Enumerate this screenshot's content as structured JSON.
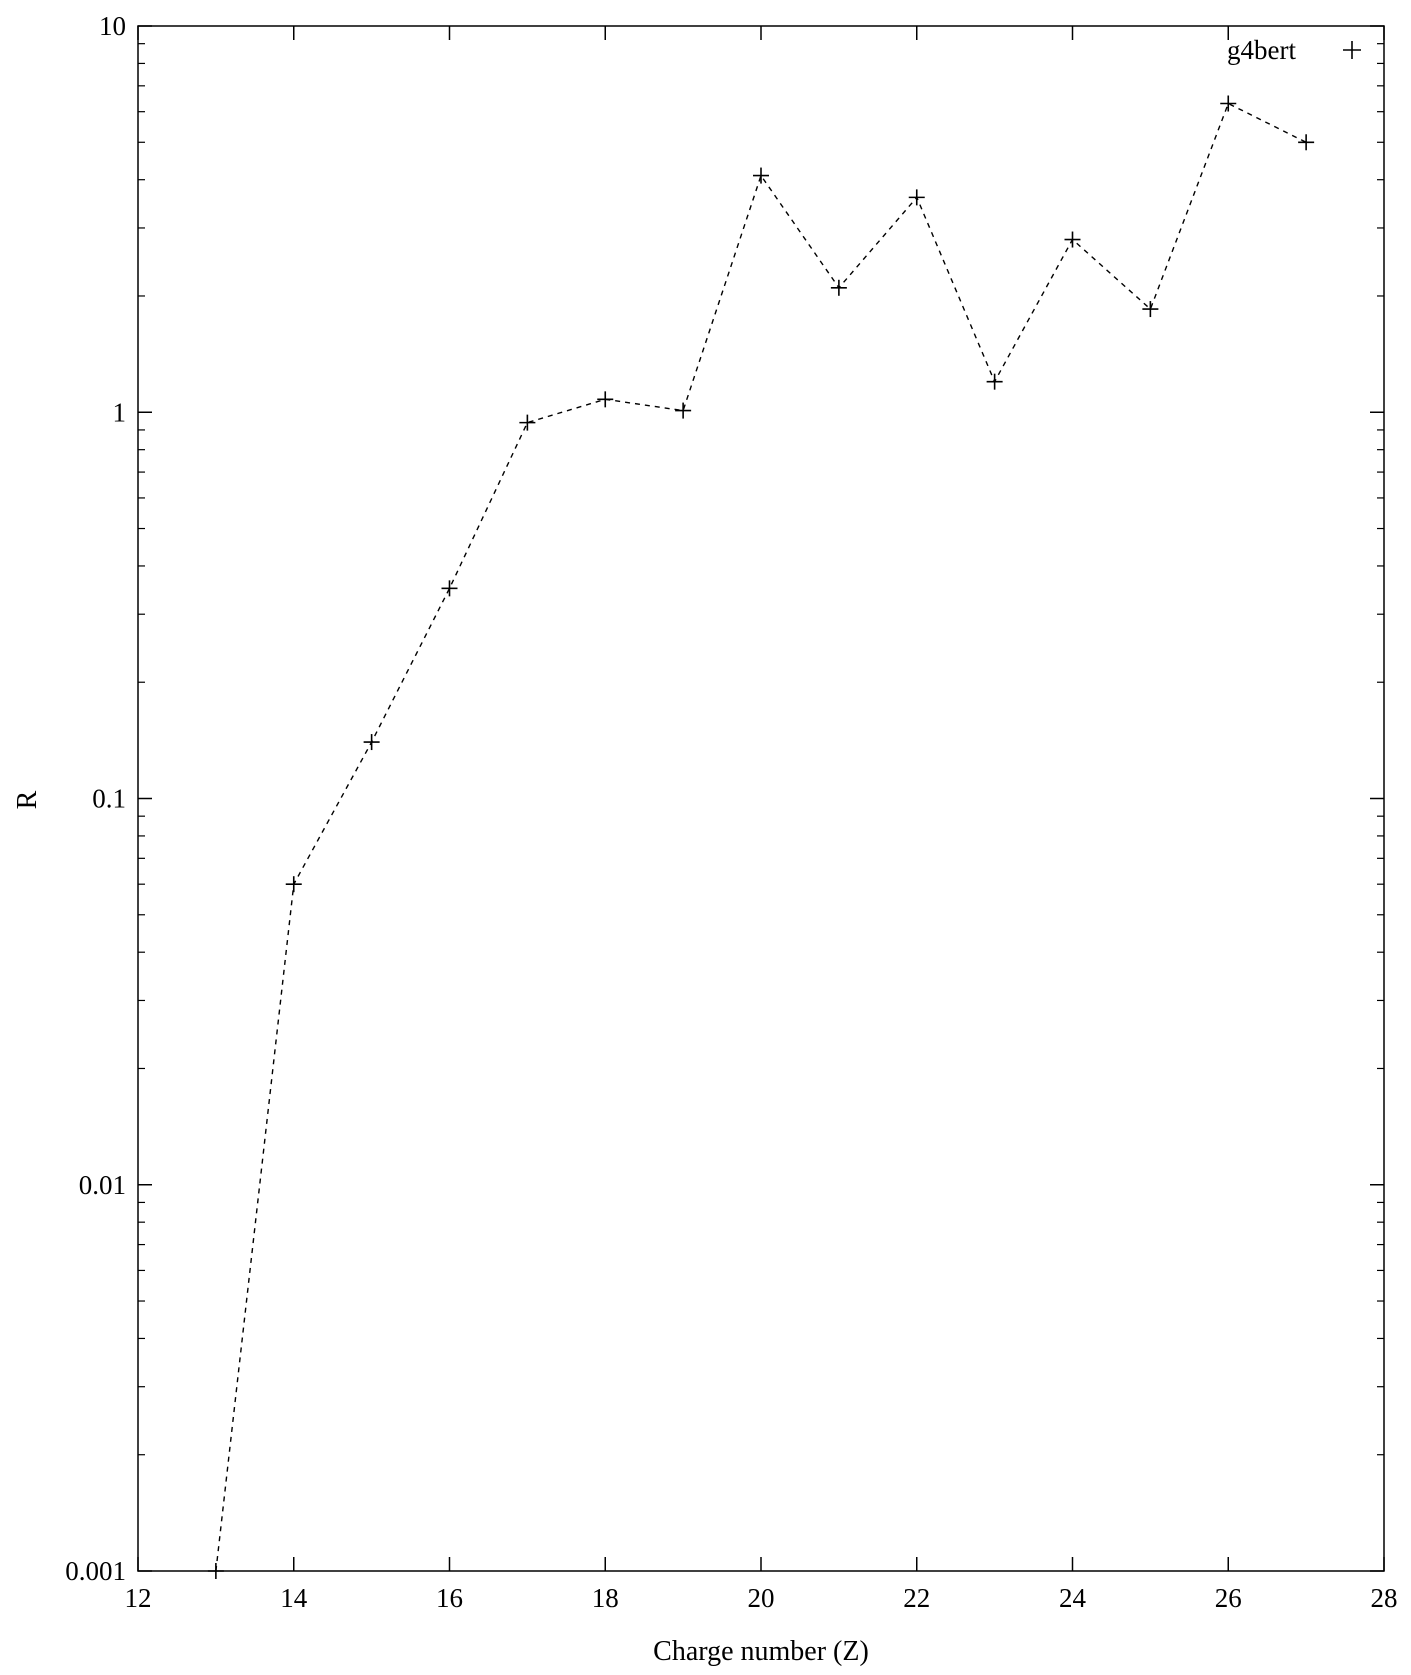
{
  "chart_data": {
    "type": "line",
    "xlabel": "Charge number (Z)",
    "ylabel": "R",
    "xlim": [
      12,
      28
    ],
    "ylim": [
      0.001,
      10
    ],
    "yscale": "log",
    "grid": false,
    "legend_position": "top-right",
    "x_ticks": [
      "12",
      "14",
      "16",
      "18",
      "20",
      "22",
      "24",
      "26",
      "28"
    ],
    "y_ticks": [
      "0.001",
      "0.01",
      "0.1",
      "1",
      "10"
    ],
    "series": [
      {
        "name": "g4bert",
        "line_style": "dashed",
        "marker": "plus",
        "color": "#000000",
        "x": [
          13,
          14,
          15,
          16,
          17,
          18,
          19,
          20,
          21,
          22,
          23,
          24,
          25,
          26,
          27
        ],
        "y": [
          0.001,
          0.06,
          0.14,
          0.35,
          0.94,
          1.08,
          1.01,
          4.1,
          2.1,
          3.6,
          1.2,
          2.8,
          1.85,
          6.3,
          5.0
        ]
      }
    ]
  }
}
